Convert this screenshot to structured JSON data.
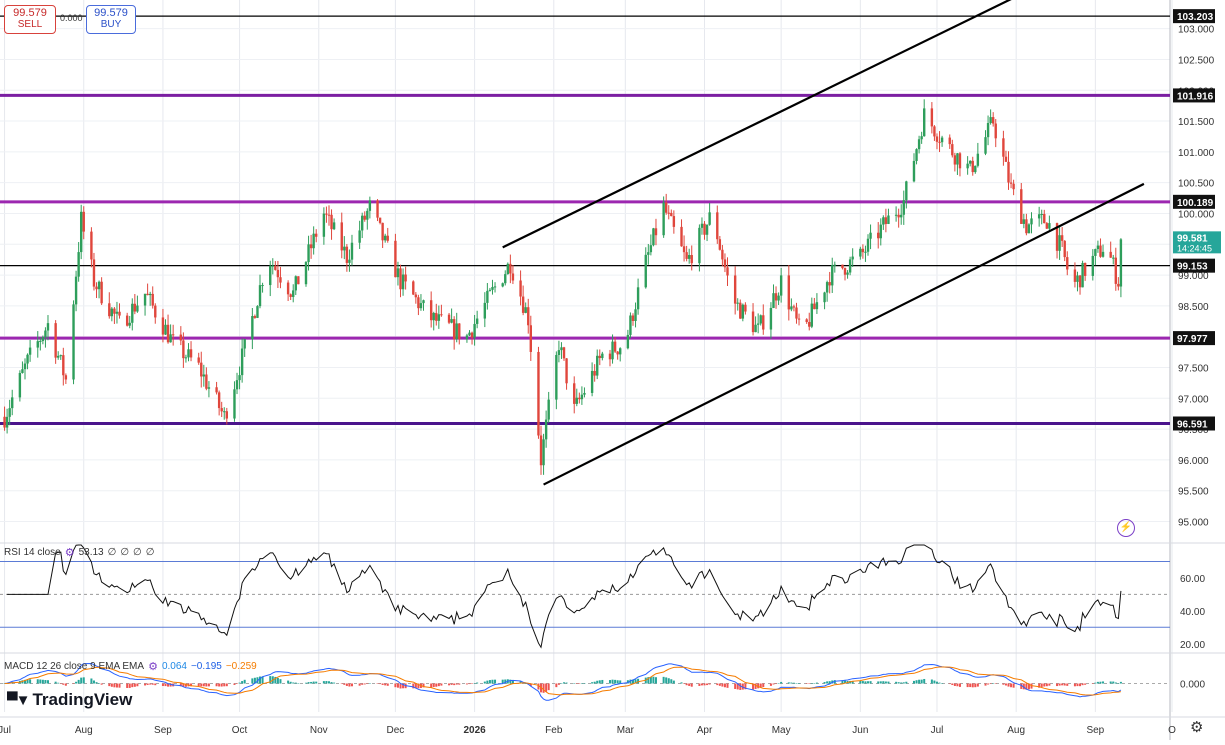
{
  "trade": {
    "sell_price": "99.579",
    "sell_label": "SELL",
    "buy_price": "99.579",
    "buy_label": "BUY",
    "spread": "0.000"
  },
  "chart_data": {
    "type": "candlestick",
    "symbol_price": "99.581",
    "countdown": "14:24:45",
    "y_ticks": [
      "103.000",
      "102.500",
      "102.000",
      "101.500",
      "101.000",
      "100.500",
      "100.000",
      "99.500",
      "99.000",
      "98.500",
      "98.000",
      "97.500",
      "97.000",
      "96.500",
      "96.000",
      "95.500",
      "95.000"
    ],
    "ylim": [
      94.7,
      103.4
    ],
    "x_labels": [
      "Jul",
      "Aug",
      "Sep",
      "Oct",
      "Nov",
      "Dec",
      "2026",
      "Feb",
      "Mar",
      "Apr",
      "May",
      "Jun",
      "Jul",
      "Aug",
      "Sep",
      "O"
    ],
    "horizontal_levels": [
      {
        "value": 103.203,
        "label": "103.203",
        "color": "#000000"
      },
      {
        "value": 101.916,
        "label": "101.916",
        "color": "#7b1fa2"
      },
      {
        "value": 100.189,
        "label": "100.189",
        "color": "#9c27b0"
      },
      {
        "value": 99.153,
        "label": "99.153",
        "color": "#000000"
      },
      {
        "value": 97.977,
        "label": "97.977",
        "color": "#9c27b0"
      },
      {
        "value": 96.591,
        "label": "96.591",
        "color": "#4a148c"
      }
    ],
    "channel_lines": [
      {
        "from": {
          "date": "2026-01-12",
          "price": 99.45
        },
        "to": {
          "date": "2026-07-31",
          "price": 103.5
        }
      },
      {
        "from": {
          "date": "2026-01-28",
          "price": 95.6
        },
        "to": {
          "date": "2026-09-20",
          "price": 100.48
        }
      }
    ],
    "close_path": [
      {
        "date": "2025-07-01",
        "close": 96.7
      },
      {
        "date": "2025-07-10",
        "close": 97.6
      },
      {
        "date": "2025-07-18",
        "close": 98.2
      },
      {
        "date": "2025-07-25",
        "close": 97.3
      },
      {
        "date": "2025-07-31",
        "close": 99.9
      },
      {
        "date": "2025-08-05",
        "close": 98.9
      },
      {
        "date": "2025-08-15",
        "close": 98.2
      },
      {
        "date": "2025-08-25",
        "close": 98.7
      },
      {
        "date": "2025-09-05",
        "close": 97.9
      },
      {
        "date": "2025-09-15",
        "close": 97.5
      },
      {
        "date": "2025-09-25",
        "close": 96.7
      },
      {
        "date": "2025-10-03",
        "close": 97.8
      },
      {
        "date": "2025-10-12",
        "close": 99.3
      },
      {
        "date": "2025-10-22",
        "close": 98.7
      },
      {
        "date": "2025-11-03",
        "close": 100.0
      },
      {
        "date": "2025-11-12",
        "close": 99.3
      },
      {
        "date": "2025-11-21",
        "close": 100.1
      },
      {
        "date": "2025-12-03",
        "close": 98.9
      },
      {
        "date": "2025-12-15",
        "close": 98.3
      },
      {
        "date": "2025-12-29",
        "close": 98.0
      },
      {
        "date": "2026-01-09",
        "close": 98.8
      },
      {
        "date": "2026-01-15",
        "close": 99.2
      },
      {
        "date": "2026-01-22",
        "close": 98.3
      },
      {
        "date": "2026-01-27",
        "close": 96.0
      },
      {
        "date": "2026-02-03",
        "close": 97.9
      },
      {
        "date": "2026-02-09",
        "close": 96.8
      },
      {
        "date": "2026-02-20",
        "close": 97.7
      },
      {
        "date": "2026-03-01",
        "close": 97.9
      },
      {
        "date": "2026-03-09",
        "close": 99.2
      },
      {
        "date": "2026-03-16",
        "close": 100.1
      },
      {
        "date": "2026-03-25",
        "close": 99.2
      },
      {
        "date": "2026-04-04",
        "close": 100.0
      },
      {
        "date": "2026-04-12",
        "close": 98.6
      },
      {
        "date": "2026-04-22",
        "close": 98.1
      },
      {
        "date": "2026-05-01",
        "close": 98.9
      },
      {
        "date": "2026-05-09",
        "close": 98.0
      },
      {
        "date": "2026-05-20",
        "close": 99.0
      },
      {
        "date": "2026-06-01",
        "close": 99.3
      },
      {
        "date": "2026-06-10",
        "close": 99.8
      },
      {
        "date": "2026-06-18",
        "close": 100.2
      },
      {
        "date": "2026-06-26",
        "close": 101.6
      },
      {
        "date": "2026-07-05",
        "close": 101.1
      },
      {
        "date": "2026-07-14",
        "close": 100.7
      },
      {
        "date": "2026-07-23",
        "close": 101.5
      },
      {
        "date": "2026-07-30",
        "close": 100.4
      },
      {
        "date": "2026-08-05",
        "close": 99.8
      },
      {
        "date": "2026-08-13",
        "close": 99.9
      },
      {
        "date": "2026-08-19",
        "close": 99.4
      },
      {
        "date": "2026-08-23",
        "close": 98.8
      },
      {
        "date": "2026-08-30",
        "close": 99.2
      },
      {
        "date": "2026-09-05",
        "close": 99.5
      },
      {
        "date": "2026-09-10",
        "close": 98.9
      },
      {
        "date": "2026-09-13",
        "close": 99.58
      }
    ],
    "rsi": {
      "legend": "RSI 14 close",
      "value": "53.13",
      "levels": [
        70,
        30
      ],
      "y_ticks": [
        "60.00",
        "40.00",
        "20.00"
      ],
      "ylim": [
        15,
        80
      ]
    },
    "macd": {
      "legend": "MACD 12 26 close 9 EMA EMA",
      "values": [
        "0.064",
        "−0.195",
        "−0.259"
      ],
      "y_ticks": [
        "0.000"
      ],
      "ylim": [
        -0.9,
        0.9
      ]
    }
  },
  "zero_glyph": "∅",
  "logo_text": "TradingView",
  "icons": [
    "flash-icon",
    "settings-icon",
    "indicator-settings-icon"
  ]
}
